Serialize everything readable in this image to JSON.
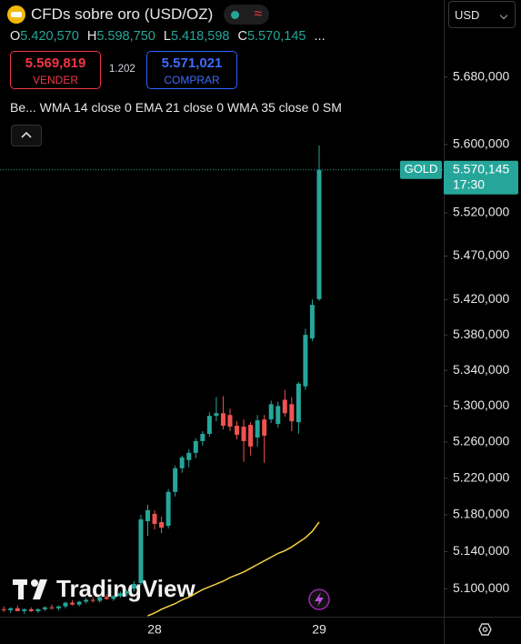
{
  "ui": {
    "title": "CFDs sobre oro (USD/OZ)",
    "ohlc": [
      {
        "key": "O",
        "value": "5.420,570"
      },
      {
        "key": "H",
        "value": "5.598,750"
      },
      {
        "key": "L",
        "value": "5.418,598"
      },
      {
        "key": "C",
        "value": "5.570,145"
      }
    ],
    "more": "...",
    "sell": {
      "price": "5.569,819",
      "label": "VENDER"
    },
    "spread": "1.202",
    "buy": {
      "price": "5.571,021",
      "label": "COMPRAR"
    },
    "indicators": "Be...  WMA 14 close 0 EMA 21 close 0 WMA 35 close 0 SM",
    "currency": "USD",
    "symbol_tag": "GOLD",
    "countdown": "17:30",
    "watermark": "TradingView"
  },
  "chart_data": {
    "type": "candlestick",
    "log_scale": true,
    "grid": false,
    "up_color": "#26a69a",
    "down_color": "#ef5350",
    "categories": [
      null,
      null,
      null,
      null,
      null,
      null,
      null,
      null,
      null,
      null,
      null,
      null,
      null,
      null,
      null,
      null,
      null,
      null,
      null,
      null,
      null,
      null,
      "28",
      null,
      null,
      null,
      null,
      null,
      null,
      null,
      null,
      null,
      null,
      null,
      null,
      null,
      null,
      null,
      null,
      null,
      null,
      null,
      null,
      null,
      null,
      null,
      "29"
    ],
    "open": [
      5078,
      5077,
      5079,
      5076,
      5078,
      5076,
      5078,
      5080,
      5079,
      5081,
      5085,
      5083,
      5086,
      5088,
      5087,
      5091,
      5089,
      5092,
      5095,
      5100,
      5106,
      5173,
      5181,
      5172,
      5168,
      5205,
      5231,
      5240,
      5248,
      5261,
      5269,
      5289,
      5292,
      5290,
      5278,
      5277,
      5279,
      5265,
      5285,
      5285,
      5280,
      5307,
      5302,
      5282,
      5322,
      5376,
      5420.57
    ],
    "high": [
      5081,
      5080,
      5082,
      5079,
      5080,
      5079,
      5081,
      5083,
      5082,
      5086,
      5088,
      5087,
      5090,
      5091,
      5092,
      5094,
      5093,
      5097,
      5099,
      5108,
      5180,
      5191,
      5185,
      5178,
      5208,
      5234,
      5245,
      5252,
      5264,
      5272,
      5293,
      5310,
      5311,
      5297,
      5283,
      5285,
      5282,
      5290,
      5290,
      5306,
      5305,
      5318,
      5310,
      5327,
      5387,
      5420,
      5598.75
    ],
    "low": [
      5075,
      5074,
      5076,
      5073,
      5075,
      5074,
      5076,
      5078,
      5077,
      5079,
      5082,
      5081,
      5084,
      5085,
      5085,
      5088,
      5087,
      5090,
      5092,
      5097,
      5104,
      5157,
      5164,
      5160,
      5165,
      5200,
      5226,
      5232,
      5242,
      5256,
      5266,
      5283,
      5274,
      5272,
      5263,
      5238,
      5245,
      5255,
      5237,
      5281,
      5276,
      5288,
      5272,
      5269,
      5318,
      5373,
      5418.598
    ],
    "close": [
      5077,
      5079,
      5076,
      5078,
      5076,
      5078,
      5080,
      5079,
      5081,
      5085,
      5083,
      5086,
      5088,
      5087,
      5091,
      5089,
      5092,
      5095,
      5097,
      5105,
      5175,
      5185,
      5170,
      5166,
      5205,
      5231,
      5243,
      5248,
      5261,
      5269,
      5289,
      5292,
      5278,
      5277,
      5268,
      5261,
      5255,
      5284,
      5267,
      5302,
      5300,
      5292,
      5283,
      5325,
      5380,
      5414,
      5570.145
    ],
    "line_series": [
      {
        "color": "#f5d142",
        "values": [
          null,
          null,
          null,
          null,
          null,
          null,
          null,
          null,
          null,
          null,
          null,
          null,
          null,
          null,
          null,
          null,
          null,
          null,
          null,
          null,
          null,
          5071,
          5074,
          5078,
          5081,
          5084,
          5088,
          5091,
          5095,
          5099,
          5102,
          5105,
          5108,
          5112,
          5115,
          5118,
          5122,
          5126,
          5130,
          5134,
          5138,
          5141,
          5145,
          5150,
          5155,
          5162,
          5172
        ]
      }
    ],
    "last_price": {
      "value": 5570.145,
      "label": "5.570,145"
    },
    "ylim": [
      5070,
      5773
    ],
    "yticks": [
      {
        "value": 5680,
        "label": "5.680,000"
      },
      {
        "value": 5600,
        "label": "5.600,000"
      },
      {
        "value": 5520,
        "label": "5.520,000"
      },
      {
        "value": 5470,
        "label": "5.470,000"
      },
      {
        "value": 5420,
        "label": "5.420,000"
      },
      {
        "value": 5380,
        "label": "5.380,000"
      },
      {
        "value": 5340,
        "label": "5.340,000"
      },
      {
        "value": 5300,
        "label": "5.300,000"
      },
      {
        "value": 5260,
        "label": "5.260,000"
      },
      {
        "value": 5220,
        "label": "5.220,000"
      },
      {
        "value": 5180,
        "label": "5.180,000"
      },
      {
        "value": 5140,
        "label": "5.140,000"
      },
      {
        "value": 5100,
        "label": "5.100,000"
      }
    ]
  }
}
